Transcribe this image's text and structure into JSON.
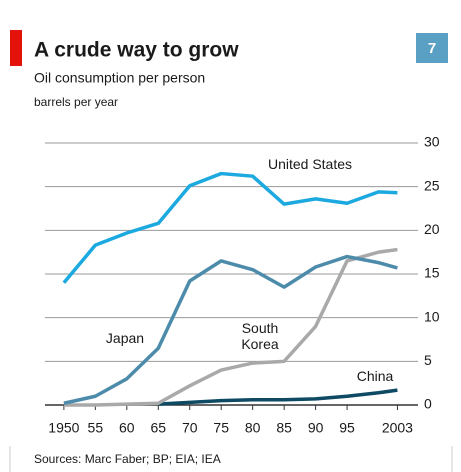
{
  "badge": "7",
  "chart_data": {
    "type": "line",
    "title": "A crude way to grow",
    "subtitle": "Oil consumption per person",
    "unit_label": "barrels per year",
    "source": "Sources: Marc Faber; BP; EIA; IEA",
    "x": [
      1950,
      1955,
      1960,
      1965,
      1970,
      1975,
      1980,
      1985,
      1990,
      1995,
      2000,
      2003
    ],
    "xlim": [
      1947,
      2005
    ],
    "xticks": [
      1950,
      {
        "value": 1955,
        "label": "55"
      },
      {
        "value": 1960,
        "label": "60"
      },
      {
        "value": 1965,
        "label": "65"
      },
      {
        "value": 1970,
        "label": "70"
      },
      {
        "value": 1975,
        "label": "75"
      },
      {
        "value": 1980,
        "label": "80"
      },
      {
        "value": 1985,
        "label": "85"
      },
      {
        "value": 1990,
        "label": "90"
      },
      {
        "value": 1995,
        "label": "95"
      },
      2003
    ],
    "ylim": [
      0,
      30
    ],
    "yticks": [
      0,
      5,
      10,
      15,
      20,
      25,
      30
    ],
    "grid": true,
    "series": [
      {
        "name": "United States",
        "color": "#1ba9e0",
        "values": [
          14.0,
          18.3,
          19.7,
          20.8,
          25.1,
          26.5,
          26.2,
          23.0,
          23.6,
          23.1,
          24.4,
          24.3
        ]
      },
      {
        "name": "Japan",
        "color": "#4d8bab",
        "values": [
          0.2,
          1.0,
          3.0,
          6.5,
          14.2,
          16.5,
          15.5,
          13.5,
          15.8,
          17.0,
          16.3,
          15.7
        ]
      },
      {
        "name": "South Korea",
        "color": "#a9a9a9",
        "values": [
          0,
          0,
          0.1,
          0.2,
          2.2,
          4.0,
          4.8,
          5.0,
          9.0,
          16.5,
          17.5,
          17.8
        ]
      },
      {
        "name": "China",
        "color": "#0e4a63",
        "values": [
          null,
          null,
          null,
          0.1,
          0.3,
          0.5,
          0.6,
          0.6,
          0.7,
          1.0,
          1.4,
          1.7
        ]
      }
    ]
  }
}
